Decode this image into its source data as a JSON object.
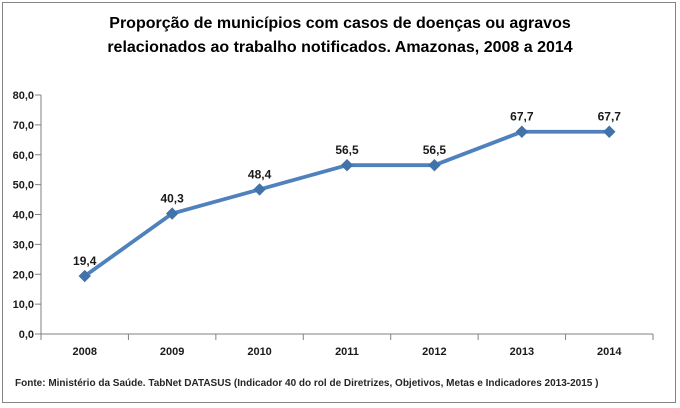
{
  "page": {
    "background": "#ffffff",
    "frame_border_color": "#848484"
  },
  "title": "Proporção de municípios com casos de doenças ou agravos relacionados ao trabalho notificados. Amazonas, 2008 a 2014",
  "source_note": "Fonte: Ministério da Saúde. TabNet DATASUS (Indicador 40 do rol de Diretrizes, Objetivos, Metas e Indicadores 2013-2015 )",
  "chart_data": {
    "type": "line",
    "title": "Proporção de municípios com casos de doenças ou agravos relacionados ao trabalho notificados. Amazonas, 2008 a 2014",
    "categories": [
      "2008",
      "2009",
      "2010",
      "2011",
      "2012",
      "2013",
      "2014"
    ],
    "values": [
      19.4,
      40.3,
      48.4,
      56.5,
      56.5,
      67.7,
      67.7
    ],
    "data_labels": [
      "19,4",
      "40,3",
      "48,4",
      "56,5",
      "56,5",
      "67,7",
      "67,7"
    ],
    "y_ticks": [
      0,
      10,
      20,
      30,
      40,
      50,
      60,
      70,
      80
    ],
    "y_tick_labels": [
      "0,0",
      "10,0",
      "20,0",
      "30,0",
      "40,0",
      "50,0",
      "60,0",
      "70,0",
      "80,0"
    ],
    "ylim": [
      0,
      80
    ],
    "xlabel": "",
    "ylabel": "",
    "grid": false,
    "legend_position": "none",
    "marker_shape": "diamond",
    "line_color": "#4F81BD",
    "marker_color": "#4173A9",
    "axis_color": "#808080",
    "label_color": "#1a1a1a"
  }
}
